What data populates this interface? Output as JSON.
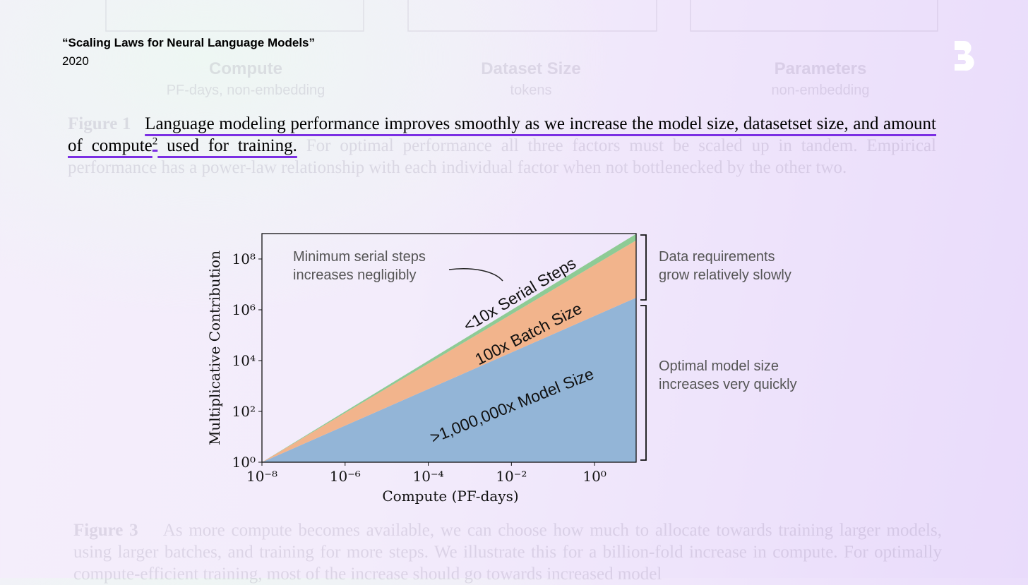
{
  "header": {
    "title": "“Scaling Laws for Neural Language Models”",
    "year": "2020"
  },
  "faded_figure": {
    "panels": [
      {
        "title": "Compute",
        "subtitle": "PF-days, non-embedding"
      },
      {
        "title": "Dataset Size",
        "subtitle": "tokens"
      },
      {
        "title": "Parameters",
        "subtitle": "non-embedding"
      }
    ]
  },
  "caption_1": {
    "label": "Figure 1",
    "highlight": "Language modeling performance improves smoothly as we increase the model size, datasetset size, and amount of compute",
    "footnote": "2",
    "highlight_end": " used for training.",
    "rest": "For optimal performance all three factors must be scaled up in tandem. Empirical performance has a power-law relationship with each individual factor when not bottlenecked by the other two."
  },
  "caption_3": {
    "label": "Figure 3",
    "text": "As more compute becomes available, we can choose how much to allocate towards training larger models, using larger batches, and training for more steps. We illustrate this for a billion-fold increase in compute. For optimally compute-efficient training, most of the increase should go towards increased model"
  },
  "chart_data": {
    "type": "stacked_area",
    "log_x": true,
    "log_y": true,
    "x_label": "Compute (PF-days)",
    "y_label": "Multiplicative Contribution",
    "x": [
      1e-08,
      10
    ],
    "series": [
      {
        "name": ">1,000,000x Model Size",
        "color": "#93b5d7",
        "values": [
          1,
          3000000
        ]
      },
      {
        "name": "100x Batch Size",
        "color": "#f2b48c",
        "values": [
          1,
          180
        ]
      },
      {
        "name": "<10x Serial Steps",
        "color": "#8ecb95",
        "values": [
          1,
          1.8
        ]
      }
    ],
    "xlim": [
      1e-08,
      10
    ],
    "ylim": [
      1,
      1000000000.0
    ],
    "xticks": [
      {
        "value": 1e-08,
        "label": "10⁻⁸"
      },
      {
        "value": 1e-06,
        "label": "10⁻⁶"
      },
      {
        "value": 0.0001,
        "label": "10⁻⁴"
      },
      {
        "value": 0.01,
        "label": "10⁻²"
      },
      {
        "value": 1,
        "label": "10⁰"
      }
    ],
    "yticks": [
      {
        "value": 1,
        "label": "10⁰"
      },
      {
        "value": 100,
        "label": "10²"
      },
      {
        "value": 10000,
        "label": "10⁴"
      },
      {
        "value": 1000000,
        "label": "10⁶"
      },
      {
        "value": 100000000,
        "label": "10⁸"
      }
    ],
    "annotations": [
      "Minimum serial steps",
      "increases negligibly",
      "Data requirements",
      "grow relatively slowly",
      "Optimal model size",
      "increases very quickly"
    ]
  }
}
